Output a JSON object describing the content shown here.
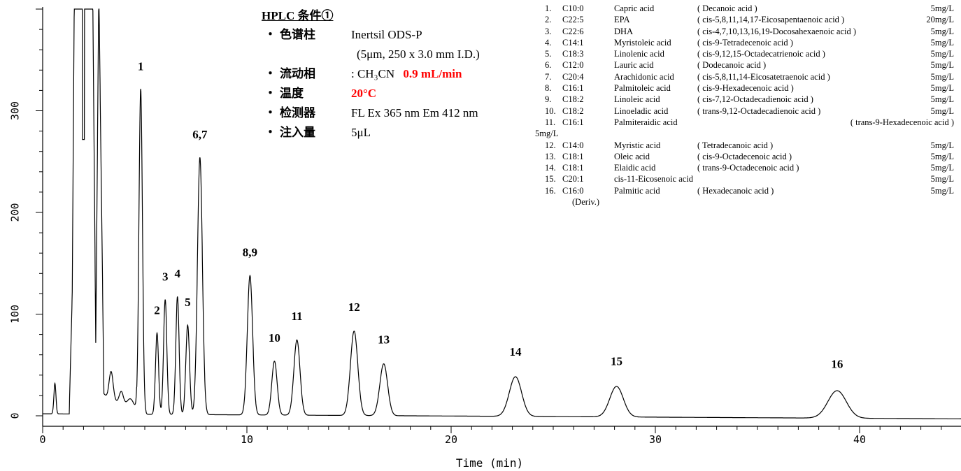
{
  "chart_data": {
    "type": "line",
    "xlabel": "Time (min)",
    "ylabel": "",
    "xlim": [
      0,
      45
    ],
    "ylim": [
      -5,
      400
    ],
    "x_ticks": [
      "0",
      "10",
      "20",
      "30",
      "40"
    ],
    "y_ticks": [
      "0",
      "100",
      "200",
      "300"
    ],
    "baseline": {
      "start": 2,
      "end": -3
    },
    "solvent_front": [
      {
        "x": 0.6,
        "y": 30,
        "w": 0.05
      },
      {
        "x": 3.35,
        "y": 28,
        "w": 0.1
      },
      {
        "x": 3.85,
        "y": 12,
        "w": 0.1
      },
      {
        "x": 4.3,
        "y": 8,
        "w": 0.15
      }
    ],
    "peaks": [
      {
        "label": "1",
        "time": 4.8,
        "height": 320,
        "width": 0.085
      },
      {
        "label": "2",
        "time": 5.6,
        "height": 80,
        "width": 0.075
      },
      {
        "label": "3",
        "time": 6.0,
        "height": 113,
        "width": 0.08
      },
      {
        "label": "4",
        "time": 6.6,
        "height": 116,
        "width": 0.08
      },
      {
        "label": "5",
        "time": 7.1,
        "height": 88,
        "width": 0.09
      },
      {
        "label": "6,7",
        "time": 7.7,
        "height": 253,
        "width": 0.12
      },
      {
        "label": "8,9",
        "time": 10.15,
        "height": 137,
        "width": 0.13
      },
      {
        "label": "10",
        "time": 11.35,
        "height": 53,
        "width": 0.13
      },
      {
        "label": "11",
        "time": 12.45,
        "height": 74,
        "width": 0.15
      },
      {
        "label": "12",
        "time": 15.25,
        "height": 83,
        "width": 0.18
      },
      {
        "label": "13",
        "time": 16.7,
        "height": 51,
        "width": 0.19
      },
      {
        "label": "14",
        "time": 23.15,
        "height": 39,
        "width": 0.3
      },
      {
        "label": "15",
        "time": 28.1,
        "height": 30,
        "width": 0.33
      },
      {
        "label": "16",
        "time": 38.9,
        "height": 27,
        "width": 0.45
      }
    ],
    "series": [
      {
        "values_note": "chromatogram trace",
        "color": "#000000"
      }
    ]
  },
  "conditions": {
    "title": "HPLC 条件①",
    "rows": [
      {
        "bullet": "・",
        "label": "色谱柱",
        "value": "Inertsil ODS-P",
        "value2": ""
      },
      {
        "bullet": "",
        "label": "",
        "value": "(5μm, 250 x 3.0 mm I.D.)",
        "value2": ""
      },
      {
        "bullet": "・",
        "label": "流动相",
        "value": ": CH₃CN",
        "value2": "0.9 mL/min"
      },
      {
        "bullet": "・",
        "label": "温度",
        "value": "",
        "value2": "20°C"
      },
      {
        "bullet": "・",
        "label": "检测器",
        "value": "FL  Ex 365 nm  Em 412 nm",
        "value2": ""
      },
      {
        "bullet": "・",
        "label": "注入量",
        "value": "5μL",
        "value2": ""
      }
    ],
    "red_color": "#ff0000"
  },
  "legend": [
    {
      "no": "1.",
      "code": "C10:0",
      "name": "Capric acid",
      "sys": "( Decanoic acid )",
      "conc": "5mg/L"
    },
    {
      "no": "2.",
      "code": "C22:5",
      "name": "EPA",
      "sys": "( cis-5,8,11,14,17-Eicosapentaenoic acid )",
      "conc": "20mg/L"
    },
    {
      "no": "3.",
      "code": "C22:6",
      "name": "DHA",
      "sys": "( cis-4,7,10,13,16,19-Docosahexaenoic acid )",
      "conc": "5mg/L"
    },
    {
      "no": "4.",
      "code": "C14:1",
      "name": "Myristoleic acid",
      "sys": "( cis-9-Tetradecenoic acid )",
      "conc": "5mg/L"
    },
    {
      "no": "5.",
      "code": "C18:3",
      "name": "Linolenic acid",
      "sys": "( cis-9,12,15-Octadecatrienoic acid )",
      "conc": "5mg/L"
    },
    {
      "no": "6.",
      "code": "C12:0",
      "name": "Lauric acid",
      "sys": "( Dodecanoic acid )",
      "conc": "5mg/L"
    },
    {
      "no": "7.",
      "code": "C20:4",
      "name": "Arachidonic acid",
      "sys": "( cis-5,8,11,14-Eicosatetraenoic acid )",
      "conc": "5mg/L"
    },
    {
      "no": "8.",
      "code": "C16:1",
      "name": "Palmitoleic acid",
      "sys": "( cis-9-Hexadecenoic acid )",
      "conc": "5mg/L"
    },
    {
      "no": "9.",
      "code": "C18:2",
      "name": "Linoleic acid",
      "sys": "( cis-7,12-Octadecadienoic acid )",
      "conc": "5mg/L"
    },
    {
      "no": "10.",
      "code": "C18:2",
      "name": "Linoeladic acid",
      "sys": "( trans-9,12-Octadecadienoic acid )",
      "conc": "5mg/L"
    },
    {
      "no": "11.",
      "code": "C16:1",
      "name": "Palmiteraidic acid",
      "sys": "( trans-9-Hexadecenoic acid )",
      "conc": ""
    },
    {
      "no": "",
      "code": "",
      "name": "",
      "sys": "",
      "conc": "5mg/L"
    },
    {
      "no": "12.",
      "code": "C14:0",
      "name": "Myristic acid",
      "sys": "( Tetradecanoic acid )",
      "conc": "5mg/L"
    },
    {
      "no": "13.",
      "code": "C18:1",
      "name": "Oleic acid",
      "sys": "( cis-9-Octadecenoic acid )",
      "conc": "5mg/L"
    },
    {
      "no": "14.",
      "code": "C18:1",
      "name": "Elaidic acid",
      "sys": "( trans-9-Octadecenoic acid )",
      "conc": "5mg/L"
    },
    {
      "no": "15.",
      "code": "C20:1",
      "name": "cis-11-Eicosenoic acid",
      "sys": "",
      "conc": "5mg/L"
    },
    {
      "no": "16.",
      "code": "C16:0",
      "name": "Palmitic acid",
      "sys": "( Hexadecanoic acid )",
      "conc": "5mg/L"
    },
    {
      "no": "",
      "code": "(Deriv.)",
      "name": "",
      "sys": "",
      "conc": ""
    }
  ]
}
